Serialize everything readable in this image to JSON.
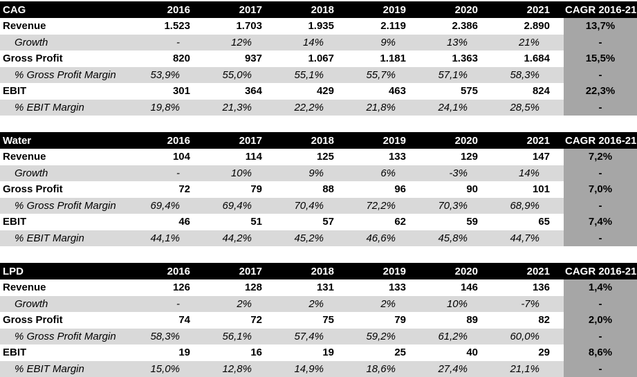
{
  "years": [
    "2016",
    "2017",
    "2018",
    "2019",
    "2020",
    "2021"
  ],
  "cagr_header": "CAGR 2016-21",
  "sections": [
    {
      "name": "CAG",
      "rows": [
        {
          "label": "Revenue",
          "type": "main",
          "values": [
            "1.523",
            "1.703",
            "1.935",
            "2.119",
            "2.386",
            "2.890"
          ],
          "cagr": "13,7%"
        },
        {
          "label": "Growth",
          "type": "sub",
          "values": [
            "-",
            "12%",
            "14%",
            "9%",
            "13%",
            "21%"
          ],
          "cagr": "-"
        },
        {
          "label": "Gross Profit",
          "type": "main",
          "values": [
            "820",
            "937",
            "1.067",
            "1.181",
            "1.363",
            "1.684"
          ],
          "cagr": "15,5%"
        },
        {
          "label": "% Gross Profit Margin",
          "type": "sub",
          "values": [
            "53,9%",
            "55,0%",
            "55,1%",
            "55,7%",
            "57,1%",
            "58,3%"
          ],
          "cagr": "-"
        },
        {
          "label": "EBIT",
          "type": "main",
          "values": [
            "301",
            "364",
            "429",
            "463",
            "575",
            "824"
          ],
          "cagr": "22,3%"
        },
        {
          "label": "% EBIT Margin",
          "type": "sub",
          "values": [
            "19,8%",
            "21,3%",
            "22,2%",
            "21,8%",
            "24,1%",
            "28,5%"
          ],
          "cagr": "-"
        }
      ]
    },
    {
      "name": "Water",
      "rows": [
        {
          "label": "Revenue",
          "type": "main",
          "values": [
            "104",
            "114",
            "125",
            "133",
            "129",
            "147"
          ],
          "cagr": "7,2%"
        },
        {
          "label": "Growth",
          "type": "sub",
          "values": [
            "-",
            "10%",
            "9%",
            "6%",
            "-3%",
            "14%"
          ],
          "cagr": "-"
        },
        {
          "label": "Gross Profit",
          "type": "main",
          "values": [
            "72",
            "79",
            "88",
            "96",
            "90",
            "101"
          ],
          "cagr": "7,0%"
        },
        {
          "label": "% Gross Profit Margin",
          "type": "sub",
          "values": [
            "69,4%",
            "69,4%",
            "70,4%",
            "72,2%",
            "70,3%",
            "68,9%"
          ],
          "cagr": "-"
        },
        {
          "label": "EBIT",
          "type": "main",
          "values": [
            "46",
            "51",
            "57",
            "62",
            "59",
            "65"
          ],
          "cagr": "7,4%"
        },
        {
          "label": "% EBIT Margin",
          "type": "sub",
          "values": [
            "44,1%",
            "44,2%",
            "45,2%",
            "46,6%",
            "45,8%",
            "44,7%"
          ],
          "cagr": "-"
        }
      ]
    },
    {
      "name": "LPD",
      "rows": [
        {
          "label": "Revenue",
          "type": "main",
          "values": [
            "126",
            "128",
            "131",
            "133",
            "146",
            "136"
          ],
          "cagr": "1,4%"
        },
        {
          "label": "Growth",
          "type": "sub",
          "values": [
            "-",
            "2%",
            "2%",
            "2%",
            "10%",
            "-7%"
          ],
          "cagr": "-"
        },
        {
          "label": "Gross Profit",
          "type": "main",
          "values": [
            "74",
            "72",
            "75",
            "79",
            "89",
            "82"
          ],
          "cagr": "2,0%"
        },
        {
          "label": "% Gross Profit Margin",
          "type": "sub",
          "values": [
            "58,3%",
            "56,1%",
            "57,4%",
            "59,2%",
            "61,2%",
            "60,0%"
          ],
          "cagr": "-"
        },
        {
          "label": "EBIT",
          "type": "main",
          "values": [
            "19",
            "16",
            "19",
            "25",
            "40",
            "29"
          ],
          "cagr": "8,6%"
        },
        {
          "label": "% EBIT Margin",
          "type": "sub",
          "values": [
            "15,0%",
            "12,8%",
            "14,9%",
            "18,6%",
            "27,4%",
            "21,1%"
          ],
          "cagr": "-"
        }
      ]
    }
  ]
}
